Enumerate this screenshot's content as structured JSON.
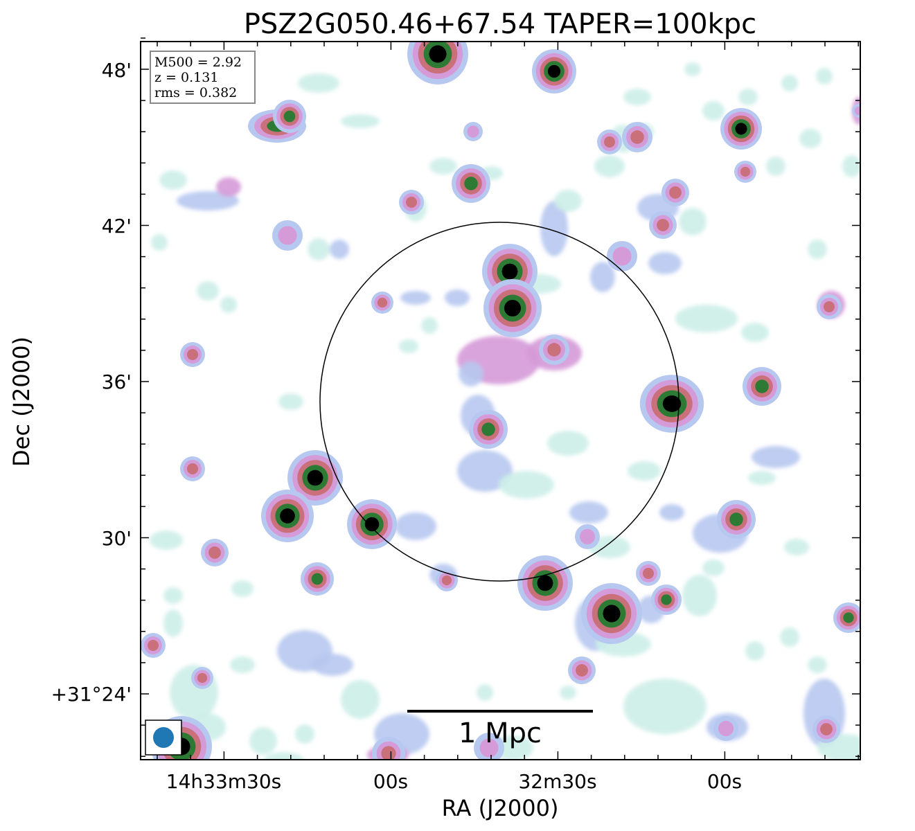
{
  "chart_data": {
    "type": "heatmap",
    "title": "PSZ2G050.46+67.54 TAPER=100kpc",
    "xlabel": "RA (J2000)",
    "ylabel": "Dec (J2000)",
    "x_ticks": [
      "14h33m30s",
      "00s",
      "32m30s",
      "00s"
    ],
    "y_ticks": [
      "48'",
      "42'",
      "36'",
      "30'",
      "+31°24'"
    ],
    "info_box": [
      "M500 = 2.92",
      "z = 0.131",
      "rms = 0.382"
    ],
    "scale_bar_label": "1 Mpc",
    "colormap": [
      "#ffffff",
      "#cdeee8",
      "#b7c8f0",
      "#d59ad8",
      "#c9707a",
      "#2d7a35",
      "#000000"
    ],
    "sources": [
      {
        "name": "top-edge-bright",
        "level": 6
      },
      {
        "name": "top-right-source",
        "level": 6
      },
      {
        "name": "central-double-north",
        "level": 6
      },
      {
        "name": "central-double-south",
        "level": 6
      },
      {
        "name": "west-double-a",
        "level": 6
      },
      {
        "name": "west-double-b",
        "level": 6
      },
      {
        "name": "west-source",
        "level": 6
      },
      {
        "name": "south-source-a",
        "level": 6
      },
      {
        "name": "south-source-b",
        "level": 6
      },
      {
        "name": "corner-source",
        "level": 6
      },
      {
        "name": "east-source",
        "level": 5
      },
      {
        "name": "northeast-source",
        "level": 5
      }
    ]
  }
}
